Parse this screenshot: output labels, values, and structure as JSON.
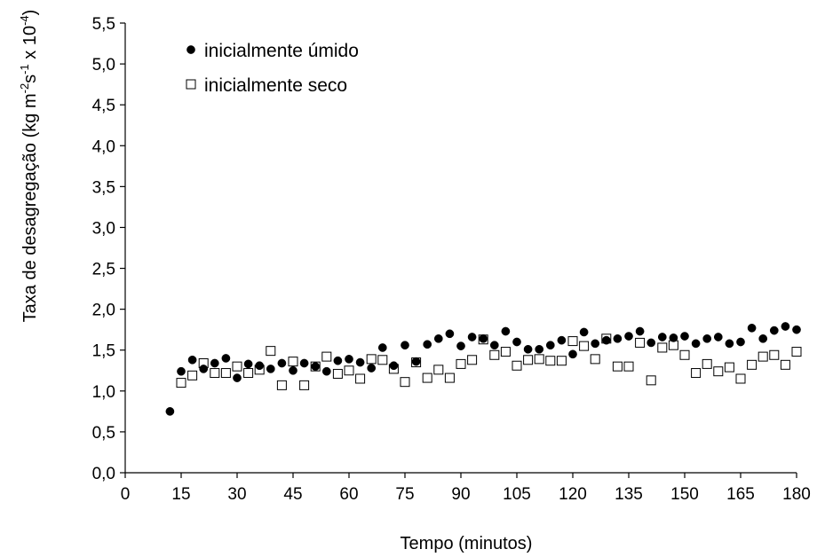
{
  "chart_data": {
    "type": "scatter",
    "title": "",
    "xlabel": "Tempo (minutos)",
    "ylabel_parts": [
      "Taxa de desagregação (kg m",
      "-2",
      "s",
      "-1",
      " x 10",
      "-4",
      ")"
    ],
    "xlim": [
      0,
      180
    ],
    "ylim": [
      0,
      5.5
    ],
    "x_ticks": [
      0,
      15,
      30,
      45,
      60,
      75,
      90,
      105,
      120,
      135,
      150,
      165,
      180
    ],
    "y_ticks": [
      "0,0",
      "0,5",
      "1,0",
      "1,5",
      "2,0",
      "2,5",
      "3,0",
      "3,5",
      "4,0",
      "4,5",
      "5,0",
      "5,5"
    ],
    "grid": false,
    "legend_position": "top-left",
    "series": [
      {
        "name": "inicialmente úmido",
        "marker": "filled-circle",
        "color": "#000000",
        "points": [
          [
            12,
            0.75
          ],
          [
            15,
            1.24
          ],
          [
            18,
            1.38
          ],
          [
            21,
            1.27
          ],
          [
            24,
            1.34
          ],
          [
            27,
            1.4
          ],
          [
            30,
            1.16
          ],
          [
            33,
            1.33
          ],
          [
            36,
            1.31
          ],
          [
            39,
            1.27
          ],
          [
            42,
            1.34
          ],
          [
            45,
            1.25
          ],
          [
            48,
            1.34
          ],
          [
            51,
            1.3
          ],
          [
            54,
            1.24
          ],
          [
            57,
            1.37
          ],
          [
            60,
            1.39
          ],
          [
            63,
            1.35
          ],
          [
            66,
            1.28
          ],
          [
            69,
            1.53
          ],
          [
            72,
            1.31
          ],
          [
            75,
            1.56
          ],
          [
            78,
            1.36
          ],
          [
            81,
            1.57
          ],
          [
            84,
            1.64
          ],
          [
            87,
            1.7
          ],
          [
            90,
            1.55
          ],
          [
            93,
            1.66
          ],
          [
            96,
            1.64
          ],
          [
            99,
            1.56
          ],
          [
            102,
            1.73
          ],
          [
            105,
            1.6
          ],
          [
            108,
            1.51
          ],
          [
            111,
            1.51
          ],
          [
            114,
            1.56
          ],
          [
            117,
            1.62
          ],
          [
            120,
            1.45
          ],
          [
            123,
            1.72
          ],
          [
            126,
            1.58
          ],
          [
            129,
            1.62
          ],
          [
            132,
            1.64
          ],
          [
            135,
            1.67
          ],
          [
            138,
            1.73
          ],
          [
            141,
            1.59
          ],
          [
            144,
            1.66
          ],
          [
            147,
            1.65
          ],
          [
            150,
            1.67
          ],
          [
            153,
            1.58
          ],
          [
            156,
            1.64
          ],
          [
            159,
            1.66
          ],
          [
            162,
            1.58
          ],
          [
            165,
            1.6
          ],
          [
            168,
            1.77
          ],
          [
            171,
            1.64
          ],
          [
            174,
            1.74
          ],
          [
            177,
            1.79
          ],
          [
            180,
            1.75
          ]
        ]
      },
      {
        "name": "inicialmente seco",
        "marker": "open-square",
        "color": "#000000",
        "points": [
          [
            15,
            1.1
          ],
          [
            18,
            1.19
          ],
          [
            21,
            1.34
          ],
          [
            24,
            1.22
          ],
          [
            27,
            1.22
          ],
          [
            30,
            1.3
          ],
          [
            33,
            1.22
          ],
          [
            36,
            1.26
          ],
          [
            39,
            1.49
          ],
          [
            42,
            1.07
          ],
          [
            45,
            1.36
          ],
          [
            48,
            1.07
          ],
          [
            51,
            1.3
          ],
          [
            54,
            1.42
          ],
          [
            57,
            1.21
          ],
          [
            60,
            1.25
          ],
          [
            63,
            1.15
          ],
          [
            66,
            1.39
          ],
          [
            69,
            1.38
          ],
          [
            72,
            1.27
          ],
          [
            75,
            1.11
          ],
          [
            78,
            1.35
          ],
          [
            81,
            1.16
          ],
          [
            84,
            1.26
          ],
          [
            87,
            1.16
          ],
          [
            90,
            1.33
          ],
          [
            93,
            1.38
          ],
          [
            96,
            1.63
          ],
          [
            99,
            1.44
          ],
          [
            102,
            1.48
          ],
          [
            105,
            1.31
          ],
          [
            108,
            1.38
          ],
          [
            111,
            1.39
          ],
          [
            114,
            1.37
          ],
          [
            117,
            1.37
          ],
          [
            120,
            1.61
          ],
          [
            123,
            1.55
          ],
          [
            126,
            1.39
          ],
          [
            129,
            1.64
          ],
          [
            132,
            1.3
          ],
          [
            135,
            1.3
          ],
          [
            138,
            1.59
          ],
          [
            141,
            1.13
          ],
          [
            144,
            1.53
          ],
          [
            147,
            1.56
          ],
          [
            150,
            1.44
          ],
          [
            153,
            1.22
          ],
          [
            156,
            1.33
          ],
          [
            159,
            1.24
          ],
          [
            162,
            1.29
          ],
          [
            165,
            1.15
          ],
          [
            168,
            1.32
          ],
          [
            171,
            1.42
          ],
          [
            174,
            1.44
          ],
          [
            177,
            1.32
          ],
          [
            180,
            1.48
          ]
        ]
      }
    ]
  }
}
